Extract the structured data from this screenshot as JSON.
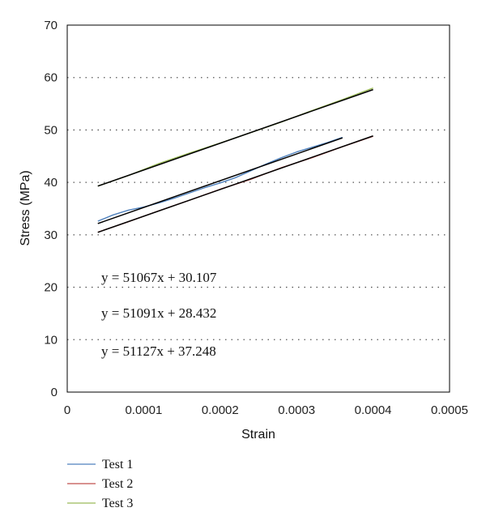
{
  "chart_data": {
    "type": "line",
    "title": "",
    "xlabel": "Strain",
    "ylabel": "Stress (MPa)",
    "xlim": [
      0,
      0.0005
    ],
    "ylim": [
      0,
      70
    ],
    "x_ticks": [
      "0",
      "0.0001",
      "0.0002",
      "0.0003",
      "0.0004",
      "0.0005"
    ],
    "y_ticks": [
      "0",
      "10",
      "20",
      "30",
      "40",
      "50",
      "60",
      "70"
    ],
    "grid": "horizontal dotted",
    "legend": "bottom-left",
    "series": [
      {
        "name": "Test 1",
        "color": "#4f81bd",
        "x": [
          4e-05,
          6e-05,
          8e-05,
          0.0001,
          0.00012,
          0.00014,
          0.00016,
          0.00018,
          0.0002,
          0.00022,
          0.00024,
          0.00026,
          0.00028,
          0.0003,
          0.00032,
          0.00034,
          0.00036
        ],
        "y": [
          32.6,
          33.8,
          34.7,
          35.3,
          36.1,
          37.0,
          38.0,
          39.0,
          39.9,
          40.9,
          42.2,
          43.5,
          44.7,
          45.8,
          46.7,
          47.6,
          48.6
        ]
      },
      {
        "name": "Test 2",
        "color": "#c0504d",
        "x": [
          4e-05,
          8e-05,
          0.00012,
          0.00016,
          0.0002,
          0.00024,
          0.00028,
          0.00032,
          0.00036,
          0.0004
        ],
        "y": [
          30.5,
          32.5,
          34.6,
          36.6,
          38.7,
          40.6,
          42.8,
          44.7,
          46.8,
          48.8
        ]
      },
      {
        "name": "Test 3",
        "color": "#9bbb59",
        "x": [
          4e-05,
          8e-05,
          0.00012,
          0.00016,
          0.0002,
          0.00024,
          0.00028,
          0.00032,
          0.00036,
          0.0004
        ],
        "y": [
          39.3,
          41.3,
          43.6,
          45.6,
          47.5,
          49.5,
          51.5,
          53.7,
          55.8,
          58.0
        ]
      }
    ],
    "fit_lines": [
      {
        "slope": 51067,
        "intercept": 30.107,
        "x": [
          4e-05,
          0.00036
        ]
      },
      {
        "slope": 51091,
        "intercept": 28.432,
        "x": [
          4e-05,
          0.0004
        ]
      },
      {
        "slope": 51127,
        "intercept": 37.248,
        "x": [
          4e-05,
          0.0004
        ]
      }
    ],
    "annotations": [
      "y = 51067x + 30.107",
      "y = 51091x + 28.432",
      "y = 51127x + 37.248"
    ]
  }
}
